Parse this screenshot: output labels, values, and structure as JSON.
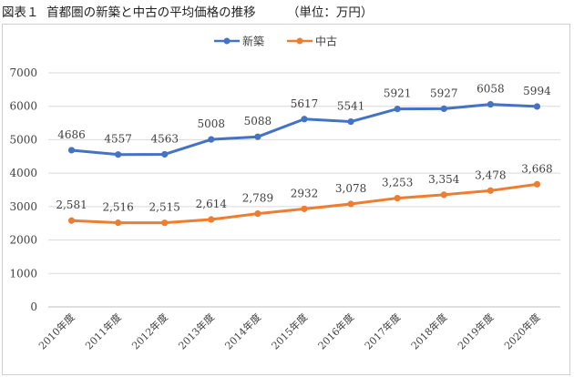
{
  "figure": {
    "label": "図表１",
    "caption": "首都圏の新築と中古の平均価格の推移",
    "unit": "（単位：万円）"
  },
  "chart_data": {
    "type": "line",
    "title": "",
    "xlabel": "",
    "ylabel": "",
    "categories": [
      "2010年度",
      "2011年度",
      "2012年度",
      "2013年度",
      "2014年度",
      "2015年度",
      "2016年度",
      "2017年度",
      "2018年度",
      "2019年度",
      "2020年度"
    ],
    "ylim": [
      0,
      7000
    ],
    "yticks": [
      "0",
      "1000",
      "2000",
      "3000",
      "4000",
      "5000",
      "6000",
      "7000"
    ],
    "grid": true,
    "legend_position": "top-center",
    "series": [
      {
        "name": "新築",
        "color": "#4472C4",
        "values": [
          4686,
          4557,
          4563,
          5008,
          5088,
          5617,
          5541,
          5921,
          5927,
          6058,
          5994
        ],
        "labels": [
          "4686",
          "4557",
          "4563",
          "5008",
          "5088",
          "5617",
          "5541",
          "5921",
          "5927",
          "6058",
          "5994"
        ]
      },
      {
        "name": "中古",
        "color": "#ED7D31",
        "values": [
          2581,
          2516,
          2515,
          2614,
          2789,
          2932,
          3078,
          3253,
          3354,
          3478,
          3668
        ],
        "labels": [
          "2,581",
          "2,516",
          "2,515",
          "2,614",
          "2,789",
          "2932",
          "3,078",
          "3,253",
          "3,354",
          "3,478",
          "3,668"
        ]
      }
    ]
  }
}
